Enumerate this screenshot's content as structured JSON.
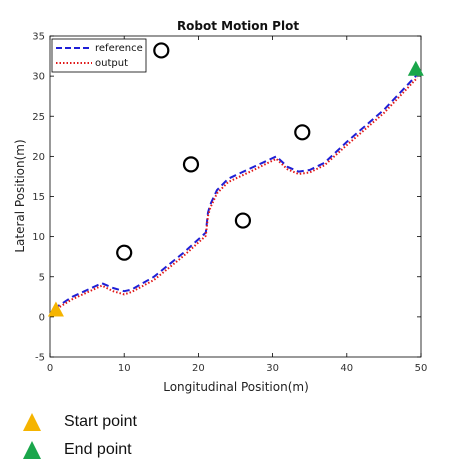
{
  "chart_data": {
    "type": "line",
    "title": "Robot Motion Plot",
    "xlabel": "Longitudinal Position(m)",
    "ylabel": "Lateral Position(m)",
    "xlim": [
      0,
      50
    ],
    "ylim": [
      -5,
      35
    ],
    "xticks": [
      0,
      10,
      20,
      30,
      40,
      50
    ],
    "yticks": [
      -5,
      0,
      5,
      10,
      15,
      20,
      25,
      30,
      35
    ],
    "grid": false,
    "legend_position": "top-left",
    "series": [
      {
        "name": "reference",
        "style": "dashed",
        "color": "#1f1fd6",
        "x": [
          0.5,
          3,
          7,
          8.5,
          10,
          11,
          14,
          18,
          21,
          21.3,
          21.6,
          22.5,
          24,
          27,
          30.5,
          32,
          33.5,
          35,
          37,
          40,
          45,
          49.5
        ],
        "y": [
          1.0,
          2.5,
          4.2,
          3.6,
          3.2,
          3.4,
          5.0,
          8.0,
          10.5,
          13.0,
          14.0,
          15.8,
          17.2,
          18.5,
          20.0,
          18.7,
          18.1,
          18.3,
          19.2,
          21.8,
          25.8,
          30.2
        ]
      },
      {
        "name": "output",
        "style": "dotted",
        "color": "#e01818",
        "x": [
          0.5,
          3,
          7,
          8.5,
          10,
          11,
          14,
          18,
          21,
          21.3,
          21.6,
          22.5,
          24,
          27,
          30.5,
          32,
          33.5,
          35,
          37,
          40,
          45,
          49.5
        ],
        "y": [
          0.8,
          2.2,
          3.9,
          3.2,
          2.8,
          3.1,
          4.6,
          7.6,
          10.1,
          12.6,
          13.6,
          15.4,
          16.8,
          18.1,
          19.7,
          18.4,
          17.8,
          18.0,
          18.9,
          21.4,
          25.4,
          29.8
        ]
      }
    ],
    "obstacles": [
      {
        "x": 15,
        "y": 33.2
      },
      {
        "x": 10,
        "y": 8
      },
      {
        "x": 19,
        "y": 19
      },
      {
        "x": 26,
        "y": 12
      },
      {
        "x": 34,
        "y": 23
      }
    ],
    "start_point": {
      "x": 0.8,
      "y": 0.8
    },
    "end_point": {
      "x": 49.3,
      "y": 30.8
    },
    "colors": {
      "start": "#f5b400",
      "end": "#1aa64b",
      "obstacle": "#000000"
    }
  },
  "key": {
    "start_label": "Start point",
    "end_label": "End point"
  }
}
